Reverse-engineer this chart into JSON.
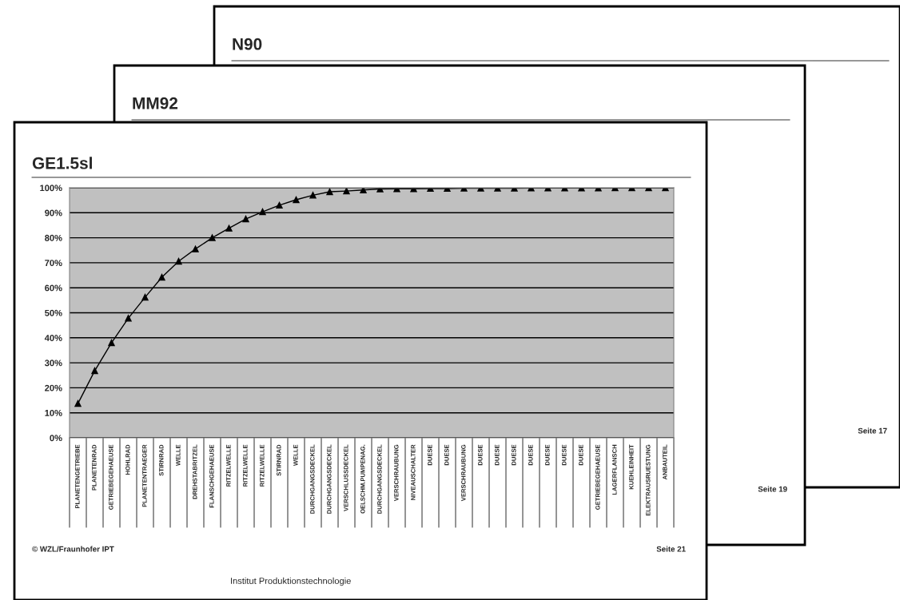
{
  "chart_data": {
    "type": "line",
    "title": "GE1.5sl",
    "categories": [
      "PLANETENGETRIEBE",
      "PLANETENRAD",
      "GETRIEBEGEHAEUSE",
      "HOHLRAD",
      "PLANETENTRAEGER",
      "STIRNRAD",
      "WELLE",
      "DREHSTABRITZEL",
      "FLANSCHGEHAEUSE",
      "RITZELWELLE",
      "RITZELWELLE",
      "RITZELWELLE",
      "STIRNRAD",
      "WELLE",
      "DURCHGANGSDECKEL",
      "DURCHGANGSDECKEL",
      "VERSCHLUSSDECKEL",
      "OELSCHM.PUMPENAG.",
      "DURCHGANGSDECKEL",
      "VERSCHRAUBUNG",
      "NIVEAUSCHALTER",
      "DUESE",
      "DUESE",
      "VERSCHRAUBUNG",
      "DUESE",
      "DUESE",
      "DUESE",
      "DUESE",
      "DUESE",
      "DUESE",
      "DUESE",
      "GETRIEBEGEHAEUSE",
      "LAGERFLANSCH",
      "KUEHLEINHEIT",
      "ELEKTRAUSRUESTUNG",
      "ANBAUTEIL"
    ],
    "series": [
      {
        "color": "#000000",
        "values": [
          13.7,
          26.8,
          38,
          47.8,
          56.2,
          64.2,
          70.6,
          75.5,
          80,
          83.8,
          87.5,
          90.4,
          93,
          95.2,
          97,
          98.4,
          98.7,
          99.1,
          99.5,
          99.6,
          99.6,
          99.7,
          99.7,
          99.8,
          99.8,
          99.8,
          99.8,
          99.9,
          99.9,
          99.9,
          99.9,
          99.9,
          100,
          100,
          100,
          100
        ]
      }
    ],
    "ylim": [
      0,
      100
    ],
    "yticks": [
      {
        "value": 0,
        "label": "0%"
      },
      {
        "value": 10,
        "label": "10%"
      },
      {
        "value": 20,
        "label": "20%"
      },
      {
        "value": 30,
        "label": "30%"
      },
      {
        "value": 40,
        "label": "40%"
      },
      {
        "value": 50,
        "label": "50%"
      },
      {
        "value": 60,
        "label": "60%"
      },
      {
        "value": 70,
        "label": "70%"
      },
      {
        "value": 80,
        "label": "80%"
      },
      {
        "value": 90,
        "label": "90%"
      },
      {
        "value": 100,
        "label": "100%"
      }
    ],
    "grid": "y",
    "marker": "triangle",
    "line_style": "solid",
    "legend": false,
    "annotations": [
      "© WZL/Fraunhofer IPT",
      "Seite 21",
      "Institut Produktionstechnologie",
      "MM92",
      "Seite 19",
      "N90",
      "Seite 17"
    ]
  }
}
